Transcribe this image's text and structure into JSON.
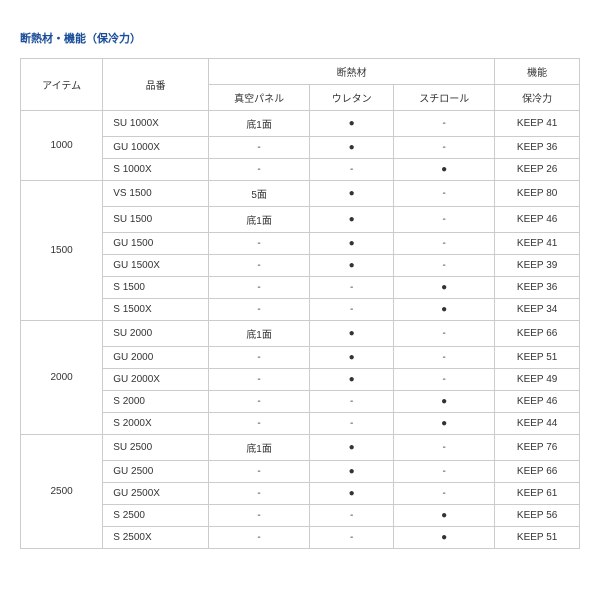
{
  "title": "断熱材・機能（保冷力）",
  "headers": {
    "item": "アイテム",
    "model": "品番",
    "insulation_group": "断熱材",
    "function_group": "機能",
    "vacuum": "真空パネル",
    "urethane": "ウレタン",
    "styrene": "スチロール",
    "cooling": "保冷力"
  },
  "groups": [
    {
      "item": "1000",
      "rows": [
        {
          "model": "SU 1000X",
          "vacuum": "底1面",
          "urethane": "●",
          "styrene": "-",
          "cooling": "KEEP 41"
        },
        {
          "model": "GU 1000X",
          "vacuum": "-",
          "urethane": "●",
          "styrene": "-",
          "cooling": "KEEP 36"
        },
        {
          "model": "S 1000X",
          "vacuum": "-",
          "urethane": "-",
          "styrene": "●",
          "cooling": "KEEP 26"
        }
      ]
    },
    {
      "item": "1500",
      "rows": [
        {
          "model": "VS 1500",
          "vacuum": "5面",
          "urethane": "●",
          "styrene": "-",
          "cooling": "KEEP 80"
        },
        {
          "model": "SU 1500",
          "vacuum": "底1面",
          "urethane": "●",
          "styrene": "-",
          "cooling": "KEEP 46"
        },
        {
          "model": "GU 1500",
          "vacuum": "-",
          "urethane": "●",
          "styrene": "-",
          "cooling": "KEEP 41"
        },
        {
          "model": "GU 1500X",
          "vacuum": "-",
          "urethane": "●",
          "styrene": "-",
          "cooling": "KEEP 39"
        },
        {
          "model": "S 1500",
          "vacuum": "-",
          "urethane": "-",
          "styrene": "●",
          "cooling": "KEEP 36"
        },
        {
          "model": "S 1500X",
          "vacuum": "-",
          "urethane": "-",
          "styrene": "●",
          "cooling": "KEEP 34"
        }
      ]
    },
    {
      "item": "2000",
      "rows": [
        {
          "model": "SU 2000",
          "vacuum": "底1面",
          "urethane": "●",
          "styrene": "-",
          "cooling": "KEEP 66"
        },
        {
          "model": "GU 2000",
          "vacuum": "-",
          "urethane": "●",
          "styrene": "-",
          "cooling": "KEEP 51"
        },
        {
          "model": "GU 2000X",
          "vacuum": "-",
          "urethane": "●",
          "styrene": "-",
          "cooling": "KEEP 49"
        },
        {
          "model": "S 2000",
          "vacuum": "-",
          "urethane": "-",
          "styrene": "●",
          "cooling": "KEEP 46"
        },
        {
          "model": "S 2000X",
          "vacuum": "-",
          "urethane": "-",
          "styrene": "●",
          "cooling": "KEEP 44"
        }
      ]
    },
    {
      "item": "2500",
      "rows": [
        {
          "model": "SU 2500",
          "vacuum": "底1面",
          "urethane": "●",
          "styrene": "-",
          "cooling": "KEEP 76"
        },
        {
          "model": "GU 2500",
          "vacuum": "-",
          "urethane": "●",
          "styrene": "-",
          "cooling": "KEEP 66"
        },
        {
          "model": "GU 2500X",
          "vacuum": "-",
          "urethane": "●",
          "styrene": "-",
          "cooling": "KEEP 61"
        },
        {
          "model": "S 2500",
          "vacuum": "-",
          "urethane": "-",
          "styrene": "●",
          "cooling": "KEEP 56"
        },
        {
          "model": "S 2500X",
          "vacuum": "-",
          "urethane": "-",
          "styrene": "●",
          "cooling": "KEEP 51"
        }
      ]
    }
  ]
}
